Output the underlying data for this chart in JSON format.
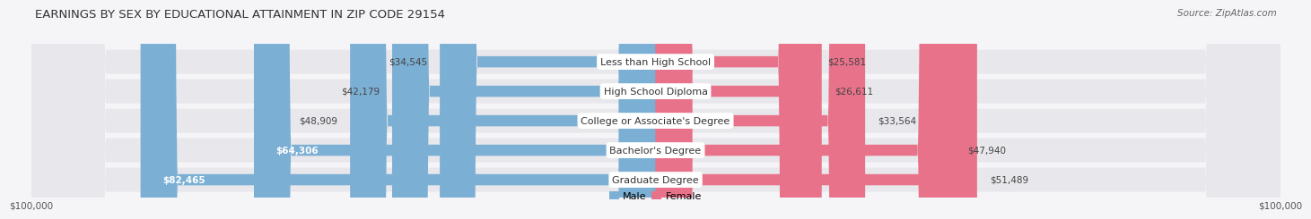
{
  "title": "EARNINGS BY SEX BY EDUCATIONAL ATTAINMENT IN ZIP CODE 29154",
  "source": "Source: ZipAtlas.com",
  "categories": [
    "Less than High School",
    "High School Diploma",
    "College or Associate's Degree",
    "Bachelor's Degree",
    "Graduate Degree"
  ],
  "male_values": [
    34545,
    42179,
    48909,
    64306,
    82465
  ],
  "female_values": [
    25581,
    26611,
    33564,
    47940,
    51489
  ],
  "male_color": "#7bafd4",
  "female_color": "#e8728a",
  "max_val": 100000,
  "male_label": "Male",
  "female_label": "Female",
  "background_color": "#f5f5f8",
  "row_bg_color": "#eaeaee",
  "row_alt_color": "#f0f0f4",
  "title_fontsize": 9.5,
  "source_fontsize": 7.5,
  "label_fontsize": 8,
  "value_fontsize": 7.5,
  "tick_fontsize": 7.5
}
